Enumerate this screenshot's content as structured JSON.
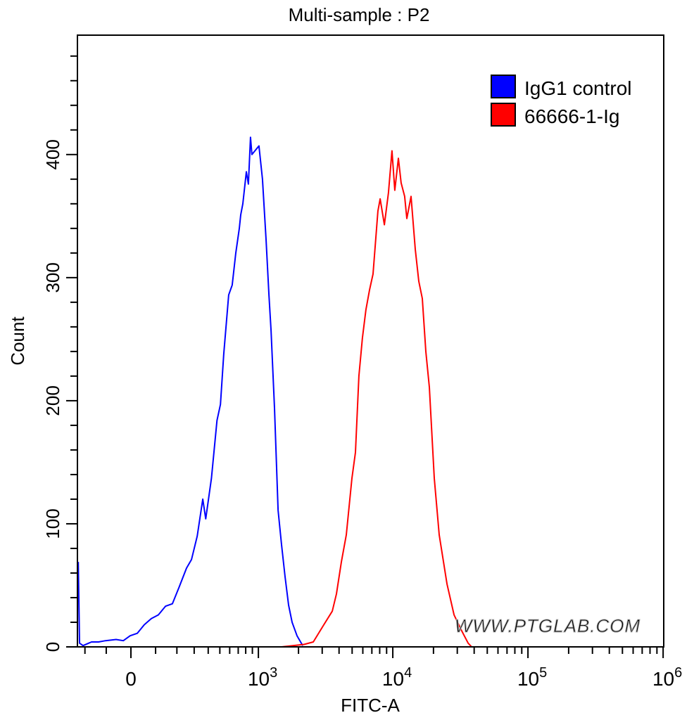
{
  "chart_data": {
    "type": "line",
    "title": "Multi-sample : P2",
    "xlabel": "FITC-A",
    "ylabel": "Count",
    "xscale": "biexponential",
    "xlim": [
      -240,
      1000000
    ],
    "ylim": [
      0,
      497
    ],
    "x_ticks": [
      {
        "value": 0,
        "base": "0",
        "exp": ""
      },
      {
        "value": 1000,
        "base": "10",
        "exp": "3"
      },
      {
        "value": 10000,
        "base": "10",
        "exp": "4"
      },
      {
        "value": 100000,
        "base": "10",
        "exp": "5"
      },
      {
        "value": 1000000,
        "base": "10",
        "exp": "6"
      }
    ],
    "y_ticks": [
      0,
      100,
      200,
      300,
      400
    ],
    "grid": false,
    "legend_position": "top-right",
    "series": [
      {
        "name": "IgG1 control",
        "color": "#0000ff",
        "points": [
          [
            -236,
            69
          ],
          [
            -229,
            3
          ],
          [
            -210,
            1
          ],
          [
            -167,
            4
          ],
          [
            -134,
            4
          ],
          [
            -103,
            5
          ],
          [
            -59,
            6
          ],
          [
            -30,
            5
          ],
          [
            -3,
            9
          ],
          [
            25,
            11
          ],
          [
            53,
            18
          ],
          [
            82,
            23
          ],
          [
            112,
            26
          ],
          [
            144,
            33
          ],
          [
            177,
            35
          ],
          [
            213,
            49
          ],
          [
            253,
            64
          ],
          [
            283,
            71
          ],
          [
            320,
            90
          ],
          [
            359,
            120
          ],
          [
            381,
            104
          ],
          [
            426,
            137
          ],
          [
            474,
            184
          ],
          [
            506,
            197
          ],
          [
            538,
            238
          ],
          [
            589,
            286
          ],
          [
            628,
            294
          ],
          [
            670,
            320
          ],
          [
            714,
            340
          ],
          [
            732,
            351
          ],
          [
            760,
            360
          ],
          [
            809,
            386
          ],
          [
            839,
            376
          ],
          [
            871,
            414
          ],
          [
            893,
            400
          ],
          [
            1010,
            407
          ],
          [
            1074,
            380
          ],
          [
            1143,
            331
          ],
          [
            1201,
            286
          ],
          [
            1246,
            257
          ],
          [
            1323,
            194
          ],
          [
            1407,
            111
          ],
          [
            1494,
            83
          ],
          [
            1587,
            57
          ],
          [
            1686,
            34
          ],
          [
            1792,
            20
          ],
          [
            1951,
            9
          ],
          [
            2149,
            1
          ]
        ]
      },
      {
        "name": "66666-1-Ig",
        "color": "#ff0000",
        "points": [
          [
            1494,
            0
          ],
          [
            2201,
            2
          ],
          [
            2575,
            4
          ],
          [
            3086,
            18
          ],
          [
            3562,
            29
          ],
          [
            3828,
            43
          ],
          [
            4163,
            69
          ],
          [
            4528,
            91
          ],
          [
            4983,
            137
          ],
          [
            5290,
            158
          ],
          [
            5613,
            220
          ],
          [
            5960,
            251
          ],
          [
            6329,
            274
          ],
          [
            6722,
            290
          ],
          [
            7138,
            303
          ],
          [
            7762,
            354
          ],
          [
            8062,
            364
          ],
          [
            8663,
            343
          ],
          [
            9286,
            369
          ],
          [
            9864,
            403
          ],
          [
            10349,
            371
          ],
          [
            10996,
            397
          ],
          [
            11527,
            377
          ],
          [
            12243,
            366
          ],
          [
            12705,
            348
          ],
          [
            13652,
            366
          ],
          [
            14669,
            323
          ],
          [
            15569,
            297
          ],
          [
            16540,
            283
          ],
          [
            17556,
            240
          ],
          [
            18642,
            211
          ],
          [
            20282,
            137
          ],
          [
            22060,
            91
          ],
          [
            25179,
            51
          ],
          [
            28390,
            26
          ],
          [
            32017,
            14
          ],
          [
            36082,
            3
          ],
          [
            38322,
            0
          ]
        ]
      }
    ],
    "watermark": "WWW.PTGLAB.COM"
  }
}
